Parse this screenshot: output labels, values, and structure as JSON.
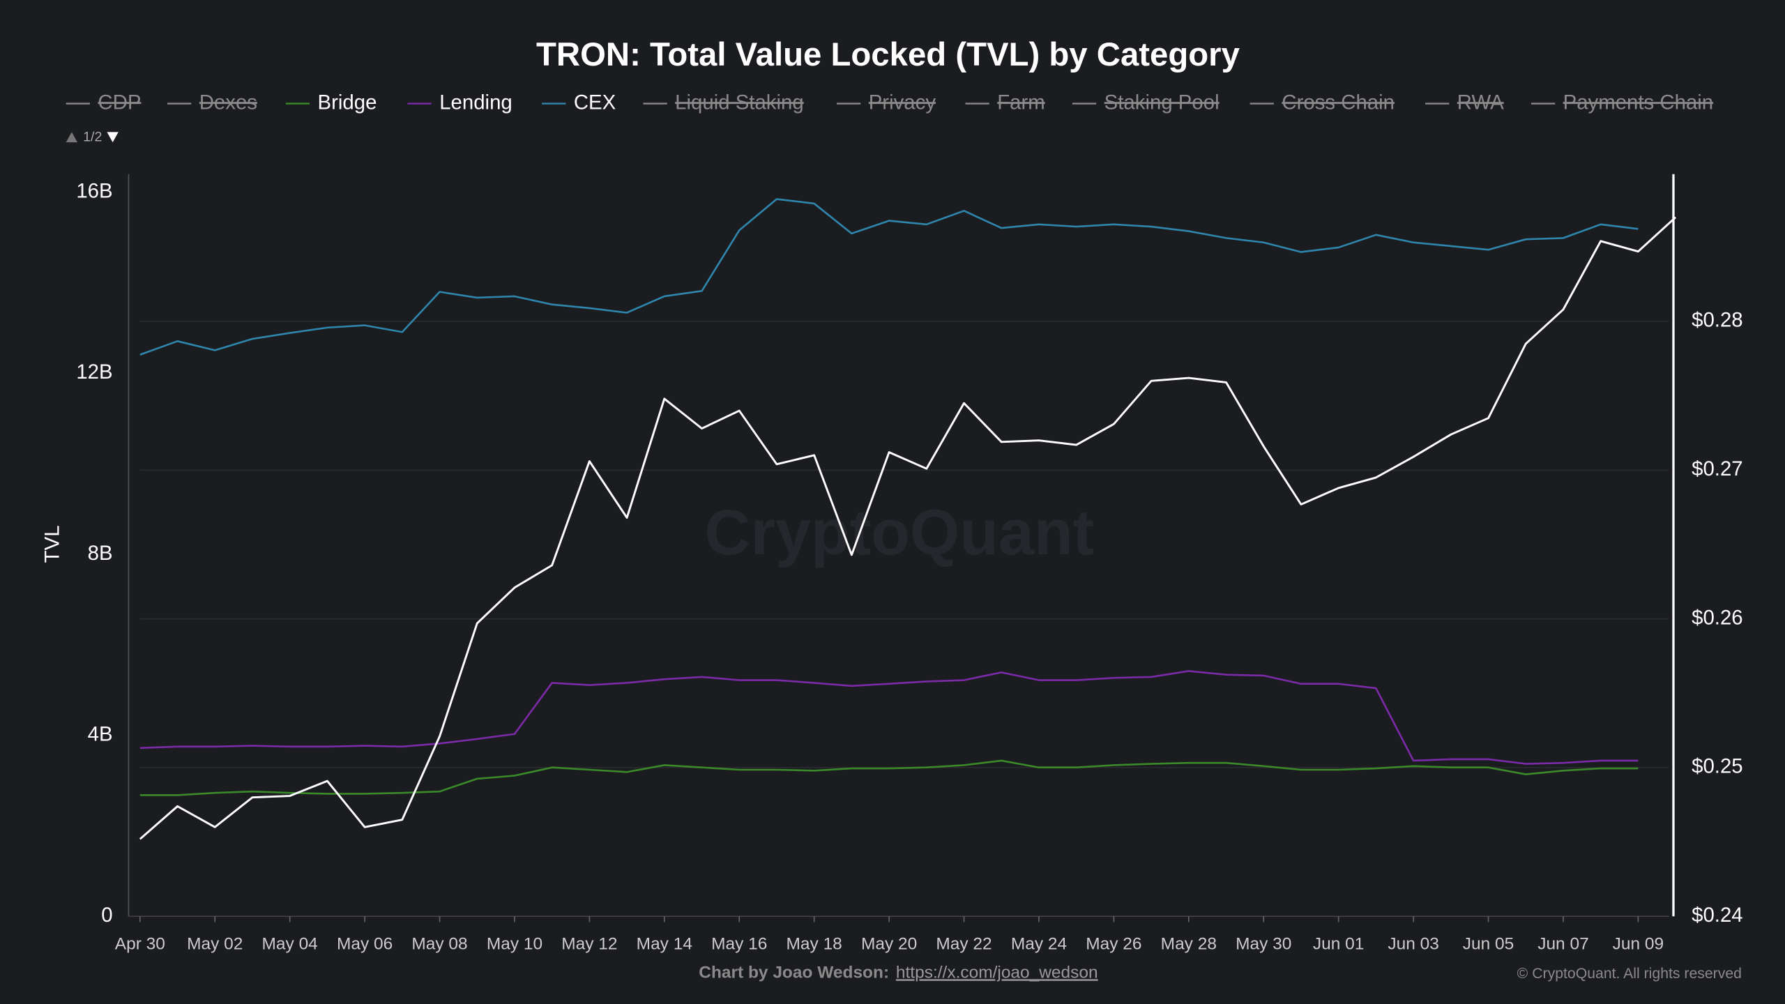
{
  "chart_data": {
    "type": "line",
    "title": "TRON: Total Value Locked (TVL) by Category",
    "y_label": "TVL",
    "watermark": "CryptoQuant",
    "legend_page": "1/2",
    "footer_credit": "Chart by Joao Wedson:",
    "footer_link": "https://x.com/joao_wedson",
    "copyright": "© CryptoQuant. All rights reserved",
    "categories": [
      "Apr 30",
      null,
      "May 02",
      null,
      "May 04",
      null,
      "May 06",
      null,
      "May 08",
      null,
      "May 10",
      null,
      "May 12",
      null,
      "May 14",
      null,
      "May 16",
      null,
      "May 18",
      null,
      "May 20",
      null,
      "May 22",
      null,
      "May 24",
      null,
      "May 26",
      null,
      "May 28",
      null,
      "May 30",
      null,
      "Jun 01",
      null,
      "Jun 03",
      null,
      "Jun 05",
      null,
      "Jun 07",
      null,
      "Jun 09",
      null
    ],
    "ylim": [
      0,
      16.4
    ],
    "yticks": [
      {
        "value": 0,
        "label": "0"
      },
      {
        "value": 4,
        "label": "4B"
      },
      {
        "value": 8,
        "label": "8B"
      },
      {
        "value": 12,
        "label": "12B"
      },
      {
        "value": 16,
        "label": "16B"
      }
    ],
    "y2lim": [
      0.24,
      0.2899
    ],
    "y2ticks": [
      {
        "value": 0.24,
        "label": "$0.24"
      },
      {
        "value": 0.25,
        "label": "$0.25"
      },
      {
        "value": 0.26,
        "label": "$0.26"
      },
      {
        "value": 0.27,
        "label": "$0.27"
      },
      {
        "value": 0.28,
        "label": "$0.28"
      }
    ],
    "grid": true,
    "series": [
      {
        "name": "CDP",
        "color": "#8a8a8a",
        "visible": false
      },
      {
        "name": "Dexes",
        "color": "#8a8a8a",
        "visible": false
      },
      {
        "name": "Bridge",
        "color": "#3a8a2a",
        "visible": true,
        "values": [
          2.68,
          2.68,
          2.73,
          2.76,
          2.73,
          2.71,
          2.71,
          2.73,
          2.76,
          3.04,
          3.11,
          3.29,
          3.24,
          3.19,
          3.34,
          3.29,
          3.24,
          3.24,
          3.22,
          3.27,
          3.27,
          3.29,
          3.34,
          3.44,
          3.29,
          3.29,
          3.34,
          3.37,
          3.39,
          3.39,
          3.32,
          3.24,
          3.24,
          3.27,
          3.32,
          3.29,
          3.29,
          3.14,
          3.22,
          3.27,
          3.27,
          null
        ]
      },
      {
        "name": "Lending",
        "color": "#7b2aa8",
        "visible": true,
        "values": [
          3.72,
          3.75,
          3.75,
          3.77,
          3.75,
          3.75,
          3.77,
          3.75,
          3.82,
          3.92,
          4.03,
          5.16,
          5.11,
          5.16,
          5.24,
          5.29,
          5.22,
          5.22,
          5.16,
          5.09,
          5.14,
          5.19,
          5.22,
          5.39,
          5.22,
          5.22,
          5.27,
          5.29,
          5.42,
          5.34,
          5.32,
          5.14,
          5.14,
          5.04,
          3.44,
          3.47,
          3.47,
          3.37,
          3.39,
          3.44,
          3.44,
          null
        ]
      },
      {
        "name": "CEX",
        "color": "#2f86ad",
        "visible": true,
        "values": [
          12.41,
          12.71,
          12.51,
          12.76,
          12.89,
          13.01,
          13.06,
          12.91,
          13.8,
          13.67,
          13.7,
          13.52,
          13.44,
          13.34,
          13.7,
          13.82,
          15.16,
          15.85,
          15.75,
          15.09,
          15.37,
          15.29,
          15.59,
          15.21,
          15.29,
          15.24,
          15.29,
          15.24,
          15.14,
          14.99,
          14.89,
          14.68,
          14.78,
          15.06,
          14.89,
          14.81,
          14.73,
          14.96,
          14.99,
          15.29,
          15.19,
          null
        ]
      },
      {
        "name": "Liquid Staking",
        "color": "#8a8a8a",
        "visible": false
      },
      {
        "name": "Privacy",
        "color": "#8a8a8a",
        "visible": false
      },
      {
        "name": "Farm",
        "color": "#8a8a8a",
        "visible": false
      },
      {
        "name": "Staking Pool",
        "color": "#8a8a8a",
        "visible": false
      },
      {
        "name": "Cross Chain",
        "color": "#8a8a8a",
        "visible": false
      },
      {
        "name": "RWA",
        "color": "#8a8a8a",
        "visible": false
      },
      {
        "name": "Payments Chain",
        "color": "#8a8a8a",
        "visible": false
      },
      {
        "color": "#ffffff",
        "axis": "y2",
        "values": [
          0.2452,
          0.2474,
          0.246,
          0.248,
          0.2481,
          0.2491,
          0.246,
          0.2465,
          0.2521,
          0.2597,
          0.2621,
          0.2636,
          0.2706,
          0.2668,
          0.2748,
          0.2728,
          0.274,
          0.2704,
          0.271,
          0.2643,
          0.2712,
          0.2701,
          0.2745,
          0.2719,
          0.272,
          0.2717,
          0.2731,
          0.276,
          0.2762,
          0.2759,
          0.2716,
          0.2677,
          0.2688,
          0.2695,
          0.2709,
          0.2724,
          0.2735,
          0.2785,
          0.2808,
          0.2854,
          0.2847,
          0.287
        ]
      }
    ]
  }
}
